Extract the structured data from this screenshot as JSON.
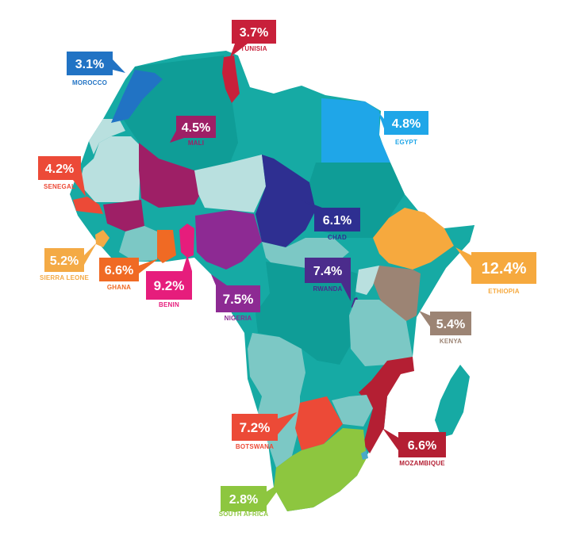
{
  "callouts": [
    {
      "key": "morocco",
      "value": "3.1%",
      "country": "MOROCCO",
      "color": "#2173c4"
    },
    {
      "key": "tunisia",
      "value": "3.7%",
      "country": "TUNISIA",
      "color": "#c8203a"
    },
    {
      "key": "mali",
      "value": "4.5%",
      "country": "MALI",
      "color": "#9e1f66"
    },
    {
      "key": "egypt",
      "value": "4.8%",
      "country": "EGYPT",
      "color": "#1fa6e8"
    },
    {
      "key": "senegal",
      "value": "4.2%",
      "country": "SENEGAL",
      "color": "#ec4a37"
    },
    {
      "key": "chad",
      "value": "6.1%",
      "country": "CHAD",
      "color": "#2e2f91"
    },
    {
      "key": "sierra_leone",
      "value": "5.2%",
      "country": "SIERRA LEONE",
      "color": "#f4aa45"
    },
    {
      "key": "ghana",
      "value": "6.6%",
      "country": "GHANA",
      "color": "#f06a24"
    },
    {
      "key": "benin",
      "value": "9.2%",
      "country": "BENIN",
      "color": "#e61d7c"
    },
    {
      "key": "nigeria",
      "value": "7.5%",
      "country": "NIGERIA",
      "color": "#8d2a93"
    },
    {
      "key": "rwanda",
      "value": "7.4%",
      "country": "RWANDA",
      "color": "#4b2c8c"
    },
    {
      "key": "ethiopia",
      "value": "12.4%",
      "country": "ETHIOPIA",
      "color": "#f6a93e"
    },
    {
      "key": "kenya",
      "value": "5.4%",
      "country": "KENYA",
      "color": "#9c8474"
    },
    {
      "key": "botswana",
      "value": "7.2%",
      "country": "BOTSWANA",
      "color": "#ec4a37"
    },
    {
      "key": "mozambique",
      "value": "6.6%",
      "country": "MOZAMBIQUE",
      "color": "#b41f33"
    },
    {
      "key": "south_africa",
      "value": "2.8%",
      "country": "SOUTH AFRICA",
      "color": "#8dc63f"
    }
  ],
  "palette": {
    "teal": "#16aaa4",
    "teal_light": "#7cc8c5",
    "pale": "#b9e0df",
    "teal_dark": "#0f9d97"
  }
}
